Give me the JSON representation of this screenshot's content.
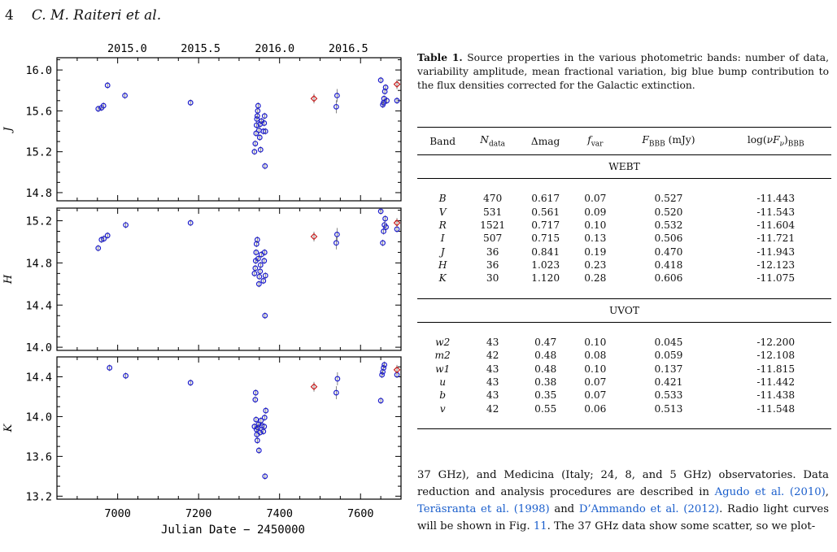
{
  "header": {
    "page_number": "4",
    "authors": "C. M. Raiteri et al."
  },
  "figure": {
    "top_axis_ticks": [
      "2015.0",
      "2015.5",
      "2016.0",
      "2016.5"
    ],
    "x_label": "Julian Date − 2450000",
    "x_ticks": [
      "7000",
      "7200",
      "7400",
      "7600"
    ],
    "panel_labels": [
      "J",
      "H",
      "K"
    ],
    "y_ticks": {
      "J": [
        "14.8",
        "15.2",
        "15.6",
        "16.0"
      ],
      "H": [
        "14.0",
        "14.4",
        "14.8",
        "15.2"
      ],
      "K": [
        "13.2",
        "13.6",
        "14.0",
        "14.4"
      ]
    },
    "colors": {
      "webt": "#1f1fcf",
      "other": "#cc2222",
      "frame": "#000000",
      "error_bar": "#666666"
    }
  },
  "chart_data": [
    {
      "type": "scatter",
      "panel": "J",
      "xlabel": "",
      "ylabel": "J",
      "xlim": [
        6850,
        7700
      ],
      "ylim": [
        16.12,
        14.72
      ],
      "series": [
        {
          "marker": "circle",
          "color": "#1f1fcf",
          "points": [
            [
              6952,
              15.62
            ],
            [
              6960,
              15.63
            ],
            [
              6965,
              15.65
            ],
            [
              6975,
              15.85
            ],
            [
              7018,
              15.75
            ],
            [
              7180,
              15.68
            ],
            [
              7338,
              15.2
            ],
            [
              7340,
              15.28
            ],
            [
              7342,
              15.38
            ],
            [
              7343,
              15.46
            ],
            [
              7344,
              15.52
            ],
            [
              7345,
              15.55
            ],
            [
              7346,
              15.6
            ],
            [
              7347,
              15.65
            ],
            [
              7349,
              15.41
            ],
            [
              7351,
              15.34
            ],
            [
              7352,
              15.47
            ],
            [
              7353,
              15.22
            ],
            [
              7355,
              15.5
            ],
            [
              7360,
              15.4
            ],
            [
              7362,
              15.48
            ],
            [
              7363,
              15.55
            ],
            [
              7364,
              15.06
            ],
            [
              7365,
              15.4
            ],
            [
              7540,
              15.64
            ],
            [
              7542,
              15.75
            ],
            [
              7650,
              15.9
            ],
            [
              7655,
              15.66
            ],
            [
              7657,
              15.68
            ],
            [
              7658,
              15.72
            ],
            [
              7660,
              15.79
            ],
            [
              7662,
              15.83
            ],
            [
              7665,
              15.7
            ],
            [
              7690,
              15.7
            ]
          ]
        },
        {
          "marker": "diamond",
          "color": "#cc2222",
          "points": [
            [
              7485,
              15.72
            ],
            [
              7690,
              15.86
            ]
          ]
        }
      ]
    },
    {
      "type": "scatter",
      "panel": "H",
      "xlabel": "",
      "ylabel": "H",
      "xlim": [
        6850,
        7700
      ],
      "ylim": [
        15.32,
        13.97
      ],
      "series": [
        {
          "marker": "circle",
          "color": "#1f1fcf",
          "points": [
            [
              6952,
              14.94
            ],
            [
              6960,
              15.02
            ],
            [
              6966,
              15.03
            ],
            [
              6975,
              15.06
            ],
            [
              7020,
              15.16
            ],
            [
              7180,
              15.18
            ],
            [
              7338,
              14.7
            ],
            [
              7340,
              14.75
            ],
            [
              7341,
              14.82
            ],
            [
              7342,
              14.9
            ],
            [
              7343,
              14.98
            ],
            [
              7345,
              15.02
            ],
            [
              7347,
              14.84
            ],
            [
              7349,
              14.6
            ],
            [
              7350,
              14.67
            ],
            [
              7352,
              14.72
            ],
            [
              7353,
              14.78
            ],
            [
              7355,
              14.88
            ],
            [
              7360,
              14.63
            ],
            [
              7362,
              14.82
            ],
            [
              7363,
              14.9
            ],
            [
              7364,
              14.3
            ],
            [
              7365,
              14.68
            ],
            [
              7540,
              14.99
            ],
            [
              7542,
              15.07
            ],
            [
              7650,
              15.29
            ],
            [
              7655,
              14.99
            ],
            [
              7657,
              15.1
            ],
            [
              7659,
              15.16
            ],
            [
              7661,
              15.22
            ],
            [
              7663,
              15.14
            ],
            [
              7690,
              15.12
            ]
          ]
        },
        {
          "marker": "diamond",
          "color": "#cc2222",
          "points": [
            [
              7485,
              15.05
            ],
            [
              7690,
              15.18
            ]
          ]
        }
      ]
    },
    {
      "type": "scatter",
      "panel": "K",
      "xlabel": "Julian Date − 2450000",
      "ylabel": "K",
      "xlim": [
        6850,
        7700
      ],
      "ylim": [
        14.6,
        13.17
      ],
      "series": [
        {
          "marker": "circle",
          "color": "#1f1fcf",
          "points": [
            [
              6980,
              14.49
            ],
            [
              7020,
              14.41
            ],
            [
              7180,
              14.34
            ],
            [
              7338,
              13.9
            ],
            [
              7340,
              14.17
            ],
            [
              7341,
              14.24
            ],
            [
              7342,
              13.97
            ],
            [
              7343,
              13.87
            ],
            [
              7344,
              13.82
            ],
            [
              7345,
              13.76
            ],
            [
              7346,
              13.89
            ],
            [
              7348,
              13.92
            ],
            [
              7349,
              13.66
            ],
            [
              7352,
              13.84
            ],
            [
              7354,
              13.96
            ],
            [
              7356,
              13.91
            ],
            [
              7360,
              13.85
            ],
            [
              7362,
              13.9
            ],
            [
              7363,
              13.99
            ],
            [
              7364,
              13.4
            ],
            [
              7366,
              14.06
            ],
            [
              7540,
              14.24
            ],
            [
              7543,
              14.38
            ],
            [
              7650,
              14.16
            ],
            [
              7653,
              14.42
            ],
            [
              7655,
              14.45
            ],
            [
              7657,
              14.49
            ],
            [
              7659,
              14.52
            ],
            [
              7690,
              14.42
            ]
          ]
        },
        {
          "marker": "diamond",
          "color": "#cc2222",
          "points": [
            [
              7485,
              14.3
            ],
            [
              7690,
              14.47
            ]
          ]
        }
      ]
    }
  ],
  "table": {
    "caption_label": "Table 1.",
    "caption_text": "Source properties in the various photometric bands: number of data, variability amplitude, mean fractional variation, big blue bump contribution to the flux densities corrected for the Galactic extinction.",
    "columns": [
      "Band",
      "N_data",
      "Δmag",
      "f_var",
      "F_BBB (mJy)",
      "log(νF_ν)_BBB"
    ],
    "sections": [
      {
        "title": "WEBT",
        "rows": [
          [
            "B",
            "470",
            "0.617",
            "0.07",
            "0.527",
            "-11.443"
          ],
          [
            "V",
            "531",
            "0.561",
            "0.09",
            "0.520",
            "-11.543"
          ],
          [
            "R",
            "1521",
            "0.717",
            "0.10",
            "0.532",
            "-11.604"
          ],
          [
            "I",
            "507",
            "0.715",
            "0.13",
            "0.506",
            "-11.721"
          ],
          [
            "J",
            "36",
            "0.841",
            "0.19",
            "0.470",
            "-11.943"
          ],
          [
            "H",
            "36",
            "1.023",
            "0.23",
            "0.418",
            "-12.123"
          ],
          [
            "K",
            "30",
            "1.120",
            "0.28",
            "0.606",
            "-11.075"
          ]
        ]
      },
      {
        "title": "UVOT",
        "rows": [
          [
            "w2",
            "43",
            "0.47",
            "0.10",
            "0.045",
            "-12.200"
          ],
          [
            "m2",
            "42",
            "0.48",
            "0.08",
            "0.059",
            "-12.108"
          ],
          [
            "w1",
            "43",
            "0.48",
            "0.10",
            "0.137",
            "-11.815"
          ],
          [
            "u",
            "43",
            "0.38",
            "0.07",
            "0.421",
            "-11.442"
          ],
          [
            "b",
            "43",
            "0.35",
            "0.07",
            "0.533",
            "-11.438"
          ],
          [
            "v",
            "42",
            "0.55",
            "0.06",
            "0.513",
            "-11.548"
          ]
        ]
      }
    ]
  },
  "body": {
    "p1": "37 GHz), and Medicina (Italy; 24, 8, and 5 GHz) observatories. Data reduction and analysis procedures are described in ",
    "ref1": "Agudo et al. (2010)",
    "p2": ", ",
    "ref2": "Teräsranta et al. (1998)",
    "p3": " and ",
    "ref3": "D’Ammando et al. (2012)",
    "p4": ". Radio light curves will be shown in Fig. ",
    "ref4": "11",
    "p5": ". The 37 GHz data show some scatter, so we plot-"
  }
}
